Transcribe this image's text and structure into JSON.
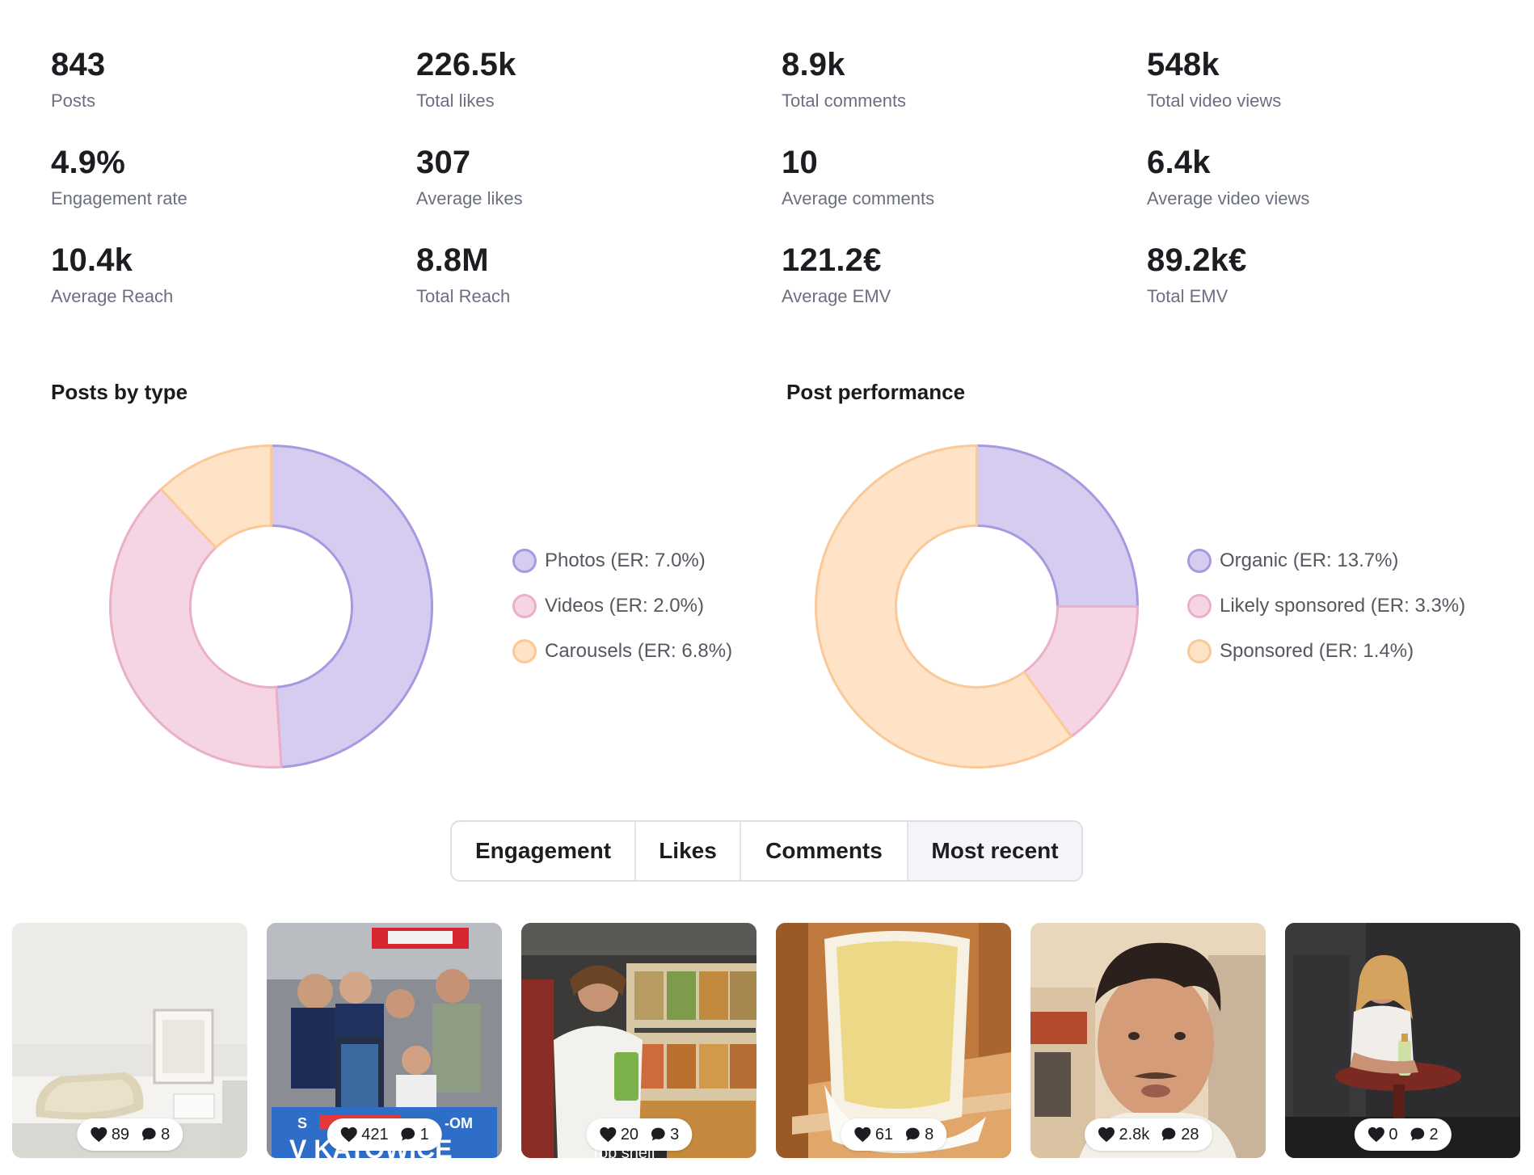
{
  "stats": [
    {
      "value": "843",
      "label": "Posts"
    },
    {
      "value": "226.5k",
      "label": "Total likes"
    },
    {
      "value": "8.9k",
      "label": "Total comments"
    },
    {
      "value": "548k",
      "label": "Total video views"
    },
    {
      "value": "4.9%",
      "label": "Engagement rate"
    },
    {
      "value": "307",
      "label": "Average likes"
    },
    {
      "value": "10",
      "label": "Average comments"
    },
    {
      "value": "6.4k",
      "label": "Average video views"
    },
    {
      "value": "10.4k",
      "label": "Average Reach"
    },
    {
      "value": "8.8M",
      "label": "Total Reach"
    },
    {
      "value": "121.2€",
      "label": "Average EMV"
    },
    {
      "value": "89.2k€",
      "label": "Total EMV"
    }
  ],
  "posts_by_type": {
    "title": "Posts by type",
    "legend": [
      "Photos (ER: 7.0%)",
      "Videos (ER: 2.0%)",
      "Carousels (ER: 6.8%)"
    ]
  },
  "post_performance": {
    "title": "Post performance",
    "legend": [
      "Organic (ER: 13.7%)",
      "Likely sponsored (ER: 3.3%)",
      "Sponsored (ER: 1.4%)"
    ]
  },
  "colors": {
    "purple_fill": "#d5ccf0",
    "purple_stroke": "#a898e0",
    "pink_fill": "#f5d5e3",
    "pink_stroke": "#eab0c9",
    "orange_fill": "#fee3c6",
    "orange_stroke": "#fbc998"
  },
  "chart_data": [
    {
      "type": "pie",
      "title": "Posts by type",
      "categories": [
        "Photos (ER: 7.0%)",
        "Videos (ER: 2.0%)",
        "Carousels (ER: 6.8%)"
      ],
      "values": [
        49,
        39,
        12
      ]
    },
    {
      "type": "pie",
      "title": "Post performance",
      "categories": [
        "Organic (ER: 13.7%)",
        "Likely sponsored (ER: 3.3%)",
        "Sponsored (ER: 1.4%)"
      ],
      "values": [
        25,
        15,
        60
      ]
    }
  ],
  "tabs": [
    "Engagement",
    "Likes",
    "Comments",
    "Most recent"
  ],
  "posts": [
    {
      "likes": "89",
      "comments": "8"
    },
    {
      "likes": "421",
      "comments": "1"
    },
    {
      "likes": "20",
      "comments": "3"
    },
    {
      "likes": "61",
      "comments": "8"
    },
    {
      "likes": "2.8k",
      "comments": "28"
    },
    {
      "likes": "0",
      "comments": "2"
    }
  ]
}
